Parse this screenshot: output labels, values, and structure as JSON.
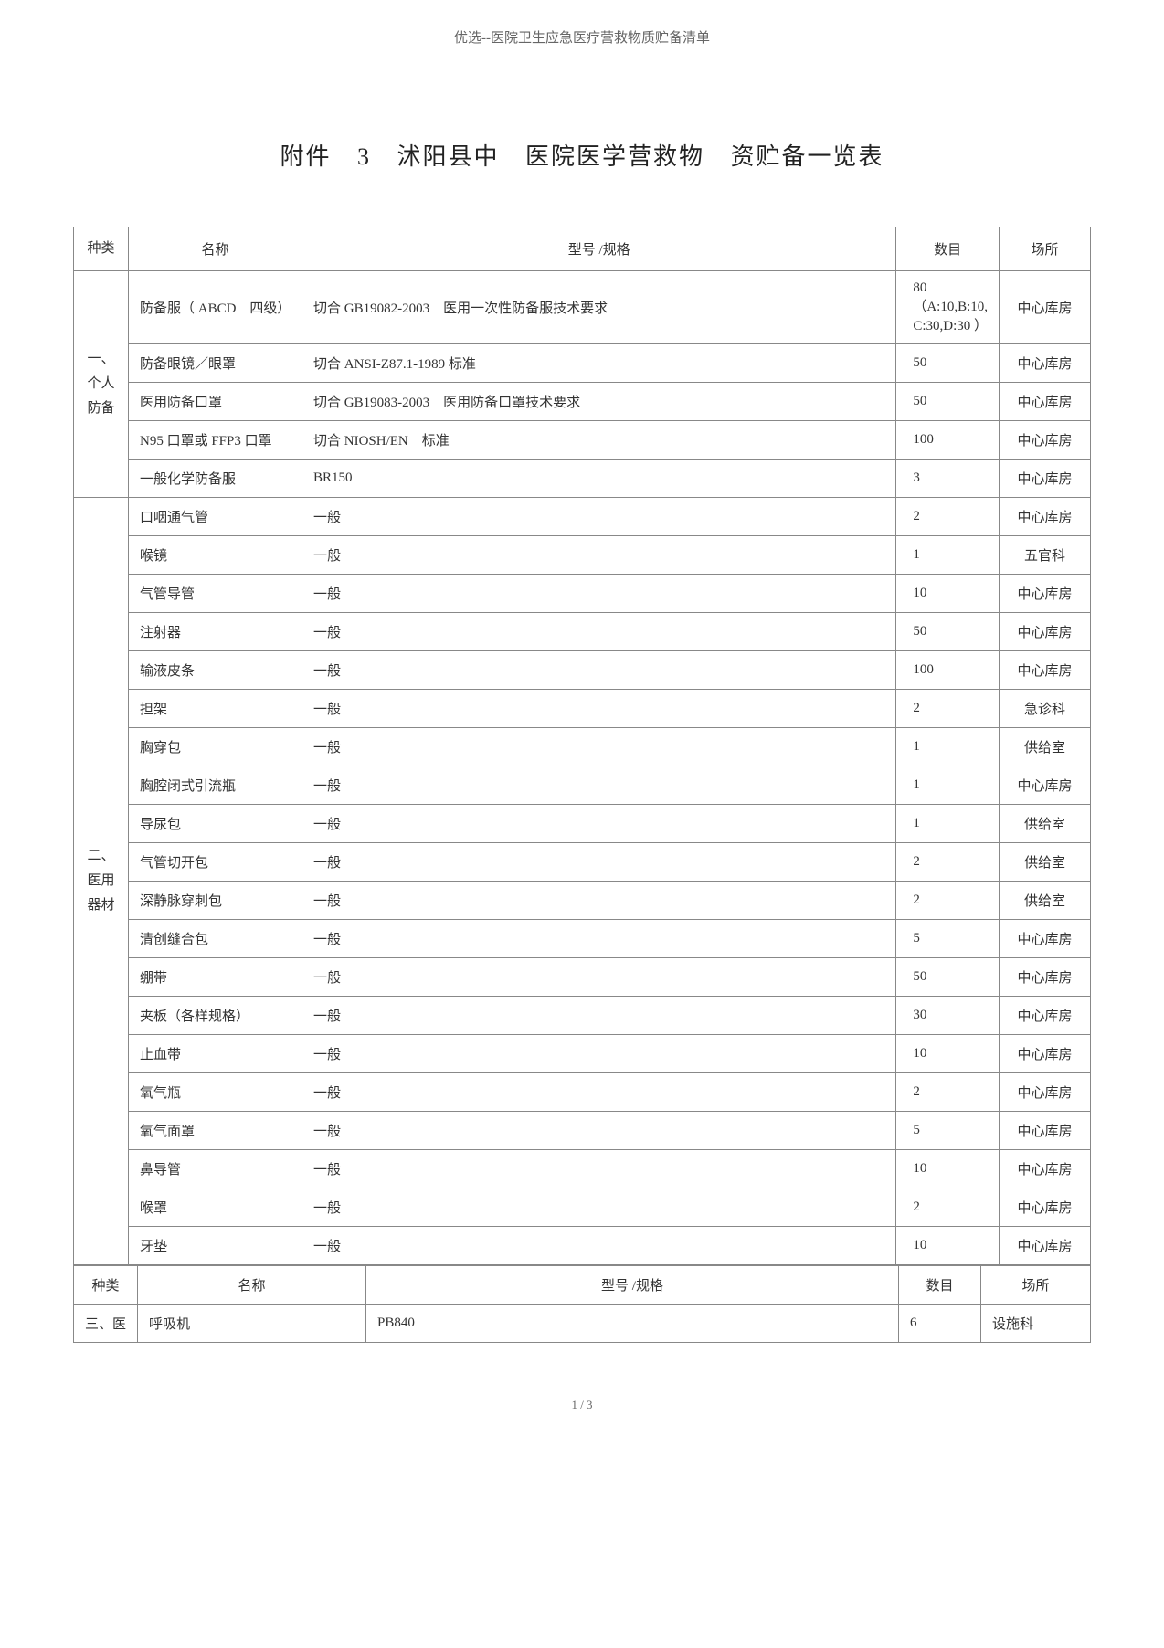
{
  "header_text": "优选--医院卫生应急医疗营救物质贮备清单",
  "title_parts": [
    "附件",
    "3",
    "沭阳县中",
    "医院医学营救物",
    "资贮备一览表"
  ],
  "footer_text": "1 / 3",
  "table1": {
    "headers": [
      "种类",
      "名称",
      "型号 /规格",
      "数目",
      "场所"
    ],
    "groups": [
      {
        "category": "一、\n个人\n防备",
        "rows": [
          {
            "name": "防备服（ ABCD　四级）",
            "spec": "切合 GB19082-2003　医用一次性防备服技术要求",
            "qty": "80（A:10,B:10, C:30,D:30 ）",
            "loc": "中心库房"
          },
          {
            "name": "防备眼镜／眼罩",
            "spec": "切合 ANSI-Z87.1-1989  标准",
            "qty": "50",
            "loc": "中心库房"
          },
          {
            "name": "医用防备口罩",
            "spec": "切合 GB19083-2003　医用防备口罩技术要求",
            "qty": "50",
            "loc": "中心库房"
          },
          {
            "name": "N95 口罩或  FFP3 口罩",
            "spec": "切合 NIOSH/EN　标准",
            "qty": "100",
            "loc": "中心库房"
          },
          {
            "name": "一般化学防备服",
            "spec": "BR150",
            "qty": "3",
            "loc": "中心库房"
          }
        ]
      },
      {
        "category": "二、\n医用\n器材",
        "rows": [
          {
            "name": "口咽通气管",
            "spec": "一般",
            "qty": "2",
            "loc": "中心库房"
          },
          {
            "name": "喉镜",
            "spec": "一般",
            "qty": "1",
            "loc": "五官科"
          },
          {
            "name": "气管导管",
            "spec": "一般",
            "qty": "10",
            "loc": "中心库房"
          },
          {
            "name": "注射器",
            "spec": "一般",
            "qty": "50",
            "loc": "中心库房"
          },
          {
            "name": "输液皮条",
            "spec": "一般",
            "qty": "100",
            "loc": "中心库房"
          },
          {
            "name": "担架",
            "spec": "一般",
            "qty": "2",
            "loc": "急诊科"
          },
          {
            "name": "胸穿包",
            "spec": "一般",
            "qty": "1",
            "loc": "供给室"
          },
          {
            "name": "胸腔闭式引流瓶",
            "spec": "一般",
            "qty": "1",
            "loc": "中心库房"
          },
          {
            "name": "导尿包",
            "spec": "一般",
            "qty": "1",
            "loc": "供给室"
          },
          {
            "name": "气管切开包",
            "spec": "一般",
            "qty": "2",
            "loc": "供给室"
          },
          {
            "name": "深静脉穿刺包",
            "spec": "一般",
            "qty": "2",
            "loc": "供给室"
          },
          {
            "name": "清创缝合包",
            "spec": "一般",
            "qty": "5",
            "loc": "中心库房"
          },
          {
            "name": "绷带",
            "spec": "一般",
            "qty": "50",
            "loc": "中心库房"
          },
          {
            "name": "夹板（各样规格）",
            "spec": "一般",
            "qty": "30",
            "loc": "中心库房"
          },
          {
            "name": "止血带",
            "spec": "一般",
            "qty": "10",
            "loc": "中心库房"
          },
          {
            "name": "氧气瓶",
            "spec": "一般",
            "qty": "2",
            "loc": "中心库房"
          },
          {
            "name": "氧气面罩",
            "spec": "一般",
            "qty": "5",
            "loc": "中心库房"
          },
          {
            "name": "鼻导管",
            "spec": "一般",
            "qty": "10",
            "loc": "中心库房"
          },
          {
            "name": "喉罩",
            "spec": "一般",
            "qty": "2",
            "loc": "中心库房"
          },
          {
            "name": "牙垫",
            "spec": "一般",
            "qty": "10",
            "loc": "中心库房"
          }
        ]
      }
    ]
  },
  "table2": {
    "headers": [
      "种类",
      "名称",
      "型号 /规格",
      "数目",
      "场所"
    ],
    "rows": [
      {
        "cat": "三、医",
        "name": "呼吸机",
        "spec": "PB840",
        "qty": "6",
        "loc": "设施科"
      }
    ]
  }
}
